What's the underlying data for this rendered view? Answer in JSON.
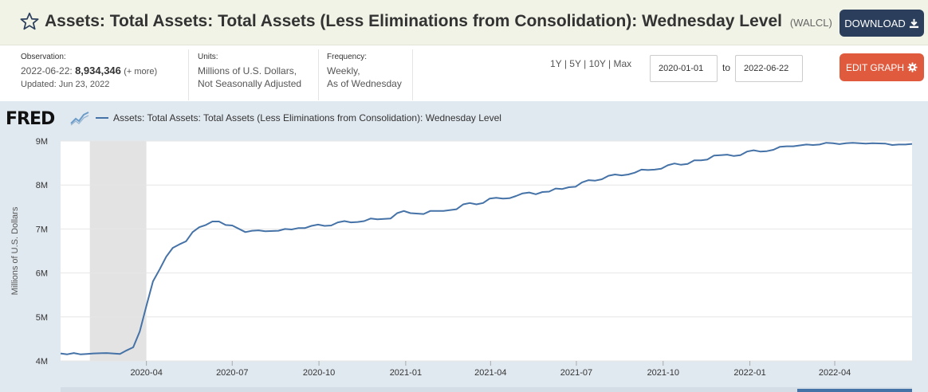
{
  "header": {
    "title": "Assets: Total Assets: Total Assets (Less Eliminations from Consolidation): Wednesday Level",
    "series_id": "(WALCL)",
    "download_label": "DOWNLOAD"
  },
  "meta": {
    "observation_label": "Observation:",
    "observation_date": "2022-06-22:",
    "observation_value": "8,934,346",
    "more_label": "(+ more)",
    "updated": "Updated: Jun 23, 2022",
    "units_label": "Units:",
    "units_line1": "Millions of U.S. Dollars,",
    "units_line2": "Not Seasonally Adjusted",
    "frequency_label": "Frequency:",
    "frequency_line1": "Weekly,",
    "frequency_line2": "As of Wednesday"
  },
  "controls": {
    "range_1y": "1Y",
    "range_5y": "5Y",
    "range_10y": "10Y",
    "range_max": "Max",
    "sep": "|",
    "start_date": "2020-01-01",
    "end_date": "2022-06-22",
    "to_label": "to",
    "edit_label": "EDIT GRAPH"
  },
  "colors": {
    "series": "#4572a7",
    "download_bg": "#2b3f5c",
    "edit_bg": "#e05b3e",
    "recession": "#e3e3e3"
  },
  "graph": {
    "logo_text": "FRED",
    "legend_label": "Assets: Total Assets: Total Assets (Less Eliminations from Consolidation): Wednesday Level"
  },
  "chart_data": {
    "type": "line",
    "ylabel": "Millions of U.S. Dollars",
    "ylim": [
      4000000,
      9000000
    ],
    "yticks": [
      {
        "value": 4000000,
        "label": "4M"
      },
      {
        "value": 5000000,
        "label": "5M"
      },
      {
        "value": 6000000,
        "label": "6M"
      },
      {
        "value": 7000000,
        "label": "7M"
      },
      {
        "value": 8000000,
        "label": "8M"
      },
      {
        "value": 9000000,
        "label": "9M"
      }
    ],
    "xlim": [
      "2020-01-01",
      "2022-06-22"
    ],
    "xticks": [
      {
        "date": "2020-04-01",
        "label": "2020-04"
      },
      {
        "date": "2020-07-01",
        "label": "2020-07"
      },
      {
        "date": "2020-10-01",
        "label": "2020-10"
      },
      {
        "date": "2021-01-01",
        "label": "2021-01"
      },
      {
        "date": "2021-04-01",
        "label": "2021-04"
      },
      {
        "date": "2021-07-01",
        "label": "2021-07"
      },
      {
        "date": "2021-10-01",
        "label": "2021-10"
      },
      {
        "date": "2022-01-01",
        "label": "2022-01"
      },
      {
        "date": "2022-04-01",
        "label": "2022-04"
      }
    ],
    "recession": {
      "start": "2020-02-01",
      "end": "2020-04-01"
    },
    "series": [
      {
        "name": "WALCL",
        "points": [
          [
            "2020-01-01",
            4170000
          ],
          [
            "2020-01-08",
            4150000
          ],
          [
            "2020-01-15",
            4180000
          ],
          [
            "2020-01-22",
            4150000
          ],
          [
            "2020-01-29",
            4160000
          ],
          [
            "2020-02-05",
            4170000
          ],
          [
            "2020-02-19",
            4180000
          ],
          [
            "2020-03-04",
            4160000
          ],
          [
            "2020-03-11",
            4240000
          ],
          [
            "2020-03-18",
            4310000
          ],
          [
            "2020-03-25",
            4670000
          ],
          [
            "2020-04-01",
            5250000
          ],
          [
            "2020-04-08",
            5810000
          ],
          [
            "2020-04-15",
            6080000
          ],
          [
            "2020-04-22",
            6370000
          ],
          [
            "2020-04-29",
            6570000
          ],
          [
            "2020-05-06",
            6650000
          ],
          [
            "2020-05-13",
            6720000
          ],
          [
            "2020-05-20",
            6930000
          ],
          [
            "2020-05-27",
            7040000
          ],
          [
            "2020-06-03",
            7090000
          ],
          [
            "2020-06-10",
            7170000
          ],
          [
            "2020-06-17",
            7170000
          ],
          [
            "2020-06-24",
            7090000
          ],
          [
            "2020-07-01",
            7080000
          ],
          [
            "2020-07-15",
            6930000
          ],
          [
            "2020-07-22",
            6960000
          ],
          [
            "2020-07-29",
            6970000
          ],
          [
            "2020-08-05",
            6950000
          ],
          [
            "2020-08-19",
            6960000
          ],
          [
            "2020-08-26",
            7000000
          ],
          [
            "2020-09-02",
            6990000
          ],
          [
            "2020-09-09",
            7020000
          ],
          [
            "2020-09-16",
            7020000
          ],
          [
            "2020-09-23",
            7070000
          ],
          [
            "2020-09-30",
            7100000
          ],
          [
            "2020-10-07",
            7070000
          ],
          [
            "2020-10-14",
            7080000
          ],
          [
            "2020-10-21",
            7150000
          ],
          [
            "2020-10-28",
            7180000
          ],
          [
            "2020-11-04",
            7150000
          ],
          [
            "2020-11-11",
            7160000
          ],
          [
            "2020-11-18",
            7180000
          ],
          [
            "2020-11-25",
            7240000
          ],
          [
            "2020-12-02",
            7220000
          ],
          [
            "2020-12-09",
            7230000
          ],
          [
            "2020-12-16",
            7240000
          ],
          [
            "2020-12-23",
            7360000
          ],
          [
            "2020-12-30",
            7410000
          ],
          [
            "2021-01-06",
            7360000
          ],
          [
            "2021-01-20",
            7340000
          ],
          [
            "2021-01-27",
            7410000
          ],
          [
            "2021-02-10",
            7410000
          ],
          [
            "2021-02-24",
            7450000
          ],
          [
            "2021-03-03",
            7560000
          ],
          [
            "2021-03-10",
            7590000
          ],
          [
            "2021-03-17",
            7560000
          ],
          [
            "2021-03-24",
            7590000
          ],
          [
            "2021-03-31",
            7690000
          ],
          [
            "2021-04-07",
            7710000
          ],
          [
            "2021-04-14",
            7690000
          ],
          [
            "2021-04-21",
            7700000
          ],
          [
            "2021-04-28",
            7750000
          ],
          [
            "2021-05-05",
            7810000
          ],
          [
            "2021-05-12",
            7830000
          ],
          [
            "2021-05-19",
            7790000
          ],
          [
            "2021-05-26",
            7840000
          ],
          [
            "2021-06-02",
            7850000
          ],
          [
            "2021-06-09",
            7920000
          ],
          [
            "2021-06-16",
            7910000
          ],
          [
            "2021-06-23",
            7950000
          ],
          [
            "2021-06-30",
            7960000
          ],
          [
            "2021-07-07",
            8060000
          ],
          [
            "2021-07-14",
            8110000
          ],
          [
            "2021-07-21",
            8100000
          ],
          [
            "2021-07-28",
            8130000
          ],
          [
            "2021-08-04",
            8210000
          ],
          [
            "2021-08-11",
            8240000
          ],
          [
            "2021-08-18",
            8220000
          ],
          [
            "2021-08-25",
            8240000
          ],
          [
            "2021-09-01",
            8280000
          ],
          [
            "2021-09-08",
            8350000
          ],
          [
            "2021-09-15",
            8340000
          ],
          [
            "2021-09-22",
            8350000
          ],
          [
            "2021-09-29",
            8370000
          ],
          [
            "2021-10-06",
            8450000
          ],
          [
            "2021-10-13",
            8490000
          ],
          [
            "2021-10-20",
            8460000
          ],
          [
            "2021-10-27",
            8480000
          ],
          [
            "2021-11-03",
            8560000
          ],
          [
            "2021-11-10",
            8560000
          ],
          [
            "2021-11-17",
            8580000
          ],
          [
            "2021-11-24",
            8670000
          ],
          [
            "2021-12-01",
            8680000
          ],
          [
            "2021-12-08",
            8690000
          ],
          [
            "2021-12-15",
            8660000
          ],
          [
            "2021-12-22",
            8680000
          ],
          [
            "2021-12-29",
            8760000
          ],
          [
            "2022-01-05",
            8790000
          ],
          [
            "2022-01-12",
            8760000
          ],
          [
            "2022-01-19",
            8770000
          ],
          [
            "2022-01-26",
            8800000
          ],
          [
            "2022-02-02",
            8870000
          ],
          [
            "2022-02-09",
            8880000
          ],
          [
            "2022-02-16",
            8880000
          ],
          [
            "2022-02-23",
            8900000
          ],
          [
            "2022-03-02",
            8920000
          ],
          [
            "2022-03-09",
            8910000
          ],
          [
            "2022-03-16",
            8920000
          ],
          [
            "2022-03-23",
            8960000
          ],
          [
            "2022-03-30",
            8950000
          ],
          [
            "2022-04-06",
            8930000
          ],
          [
            "2022-04-13",
            8950000
          ],
          [
            "2022-04-20",
            8960000
          ],
          [
            "2022-04-27",
            8950000
          ],
          [
            "2022-05-04",
            8940000
          ],
          [
            "2022-05-11",
            8950000
          ],
          [
            "2022-05-25",
            8940000
          ],
          [
            "2022-06-01",
            8910000
          ],
          [
            "2022-06-08",
            8920000
          ],
          [
            "2022-06-15",
            8920000
          ],
          [
            "2022-06-22",
            8934346
          ]
        ]
      }
    ]
  }
}
